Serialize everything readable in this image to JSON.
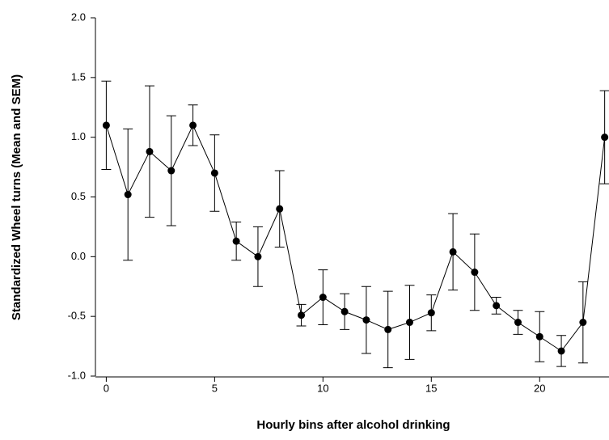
{
  "chart_data": {
    "type": "line",
    "x_label": "Hourly bins after alcohol drinking",
    "y_label": "Standardized Wheel turns (Mean and SEM)",
    "x": [
      0,
      1,
      2,
      3,
      4,
      5,
      6,
      7,
      8,
      9,
      10,
      11,
      12,
      13,
      14,
      15,
      16,
      17,
      18,
      19,
      20,
      21,
      22,
      23
    ],
    "values": [
      1.1,
      0.52,
      0.88,
      0.72,
      1.1,
      0.7,
      0.13,
      0.0,
      0.4,
      -0.49,
      -0.34,
      -0.46,
      -0.53,
      -0.61,
      -0.55,
      -0.47,
      0.04,
      -0.13,
      -0.41,
      -0.55,
      -0.67,
      -0.79,
      -0.55,
      1.0
    ],
    "errors": [
      0.37,
      0.55,
      0.55,
      0.46,
      0.17,
      0.32,
      0.16,
      0.25,
      0.32,
      0.09,
      0.23,
      0.15,
      0.28,
      0.32,
      0.31,
      0.15,
      0.32,
      0.32,
      0.07,
      0.1,
      0.21,
      0.13,
      0.34,
      0.39
    ],
    "color": "#000000",
    "xlim": [
      -0.5,
      23.2
    ],
    "ylim": [
      -1.0,
      2.0
    ],
    "xticks": [
      0,
      5,
      10,
      15,
      20
    ],
    "yticks": [
      {
        "value": 2.0,
        "label": "2.0"
      },
      1.5,
      {
        "value": 1.0,
        "label": "1.0"
      },
      0.5,
      {
        "value": 0,
        "label": "0.0"
      },
      -0.5,
      {
        "value": -1.0,
        "label": "-1.0"
      }
    ]
  }
}
